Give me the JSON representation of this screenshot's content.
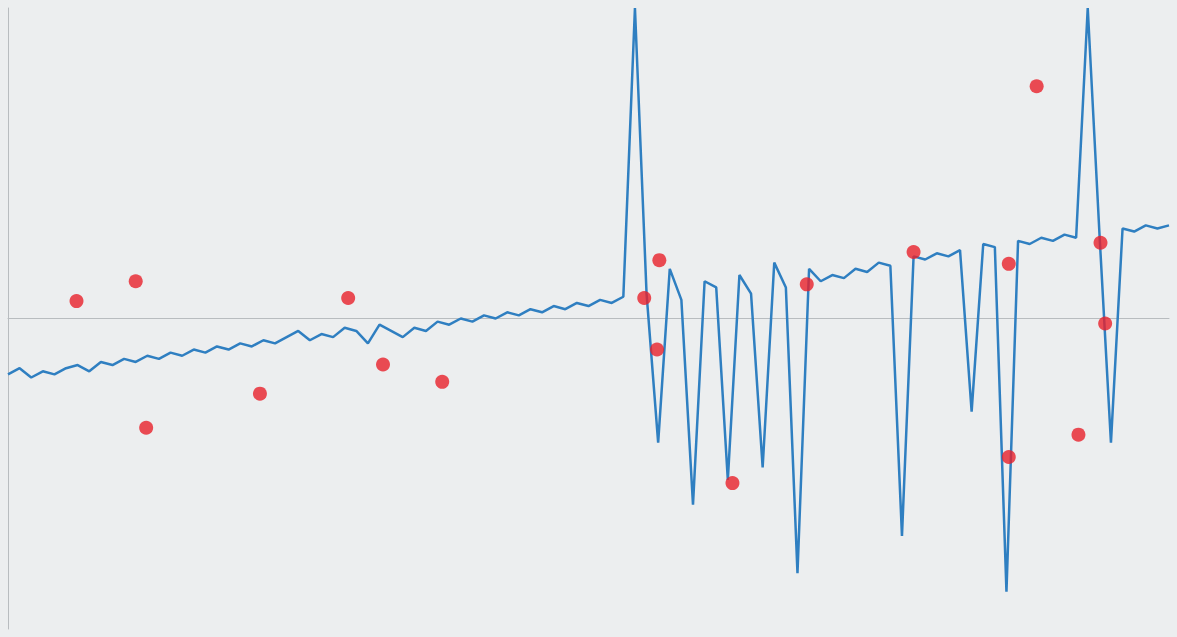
{
  "chart_data": {
    "type": "line",
    "xlim": [
      0,
      100
    ],
    "ylim": [
      -50,
      50
    ],
    "tick_labels": false,
    "grid": false,
    "series": [
      {
        "type": "line",
        "color": "#2f7fc1",
        "line_style": "solid",
        "x": [
          0,
          1,
          2,
          3,
          4,
          5,
          6,
          7,
          8,
          9,
          10,
          11,
          12,
          13,
          14,
          15,
          16,
          17,
          18,
          19,
          20,
          21,
          22,
          23,
          24,
          25,
          26,
          27,
          28,
          29,
          30,
          31,
          32,
          33,
          34,
          35,
          36,
          37,
          38,
          39,
          40,
          41,
          42,
          43,
          44,
          45,
          46,
          47,
          48,
          49,
          50,
          51,
          52,
          53,
          54,
          55,
          56,
          57,
          58,
          59,
          60,
          61,
          62,
          63,
          64,
          65,
          66,
          67,
          68,
          69,
          70,
          71,
          72,
          73,
          74,
          75,
          76,
          77,
          78,
          79,
          80,
          81,
          82,
          83,
          84,
          85,
          86,
          87,
          88,
          89,
          90,
          91,
          92,
          93,
          94,
          95,
          96,
          97,
          98,
          99,
          100
        ],
        "values": [
          -9,
          -8,
          -9.5,
          -8.5,
          -9,
          -8,
          -7.5,
          -8.5,
          -7,
          -7.5,
          -6.5,
          -7,
          -6,
          -6.5,
          -5.5,
          -6,
          -5,
          -5.5,
          -4.5,
          -5,
          -4,
          -4.5,
          -3.5,
          -4,
          -3,
          -2,
          -3.5,
          -2.5,
          -3,
          -1.5,
          -2,
          -4,
          -1,
          -2,
          -3,
          -1.5,
          -2,
          -0.5,
          -1,
          0,
          -0.5,
          0.5,
          0,
          1,
          0.5,
          1.5,
          1,
          2,
          1.5,
          2.5,
          2,
          3,
          2.5,
          3.5,
          50,
          4,
          -20,
          8,
          3,
          -30,
          6,
          5,
          -26,
          7,
          4,
          -24,
          9,
          5,
          -41,
          8,
          6,
          7,
          6.5,
          8,
          7.5,
          9,
          8.5,
          -35,
          10,
          9.5,
          10.5,
          10,
          11,
          -15,
          12,
          11.5,
          -44,
          12.5,
          12,
          13,
          12.5,
          13.5,
          13,
          50,
          14,
          -20,
          14.5,
          14,
          15,
          14.5,
          15
        ]
      },
      {
        "type": "scatter",
        "color": "#e8202a",
        "marker": "circle",
        "x": [
          56.1,
          54.8,
          55.9,
          62.4,
          68.8,
          78.0,
          86.2,
          86.2,
          92.2,
          94.5,
          88.6,
          94.1,
          37.4,
          29.3,
          32.3,
          11.0,
          5.9,
          21.7,
          11.9
        ],
        "values": [
          9.4,
          3.3,
          -5.0,
          -26.5,
          5.5,
          10.7,
          8.8,
          -22.3,
          -18.7,
          -0.8,
          37.4,
          12.2,
          -10.2,
          3.3,
          -7.4,
          6.0,
          2.8,
          -12.1,
          -17.6
        ]
      }
    ]
  }
}
